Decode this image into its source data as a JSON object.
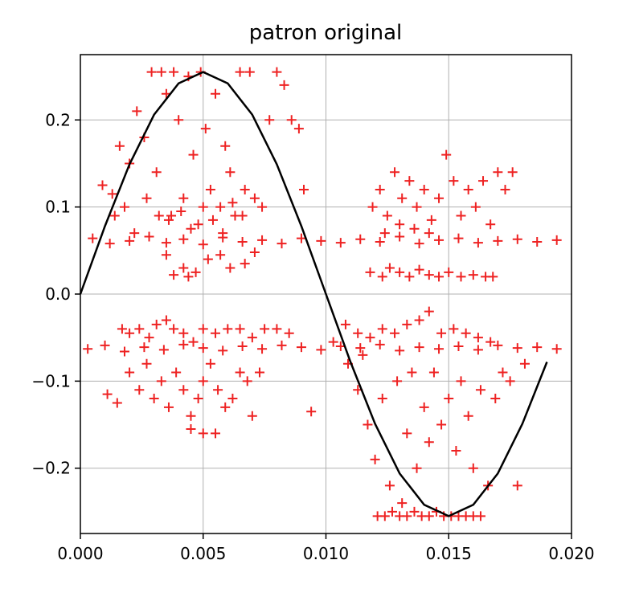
{
  "chart_data": {
    "type": "scatter",
    "title": "patron original",
    "xlabel": "",
    "ylabel": "",
    "xlim": [
      0.0,
      0.02
    ],
    "ylim": [
      -0.275,
      0.275
    ],
    "grid": true,
    "x_ticks": [
      "0.000",
      "0.005",
      "0.010",
      "0.015",
      "0.020"
    ],
    "x_tick_values": [
      0.0,
      0.005,
      0.01,
      0.015,
      0.02
    ],
    "y_ticks": [
      "0.2",
      "0.1",
      "0.0",
      "−0.1",
      "−0.2"
    ],
    "y_tick_values": [
      0.2,
      0.1,
      0.0,
      -0.1,
      -0.2
    ],
    "series": [
      {
        "kind": "line",
        "color": "#000000",
        "x": [
          0.0,
          0.001,
          0.002,
          0.003,
          0.004,
          0.005,
          0.006,
          0.007,
          0.008,
          0.009,
          0.01,
          0.011,
          0.012,
          0.013,
          0.014,
          0.015,
          0.016,
          0.017,
          0.018,
          0.019
        ],
        "y": [
          0.0,
          0.078,
          0.149,
          0.206,
          0.242,
          0.255,
          0.242,
          0.206,
          0.149,
          0.078,
          0.0,
          -0.078,
          -0.149,
          -0.206,
          -0.242,
          -0.255,
          -0.242,
          -0.206,
          -0.149,
          -0.078
        ]
      },
      {
        "kind": "scatter",
        "marker": "+",
        "color": "#ee2222",
        "points": [
          [
            0.0005,
            0.064
          ],
          [
            0.0012,
            0.058
          ],
          [
            0.002,
            0.061
          ],
          [
            0.0028,
            0.066
          ],
          [
            0.0035,
            0.059
          ],
          [
            0.0042,
            0.063
          ],
          [
            0.005,
            0.057
          ],
          [
            0.0058,
            0.065
          ],
          [
            0.0066,
            0.06
          ],
          [
            0.0074,
            0.062
          ],
          [
            0.0082,
            0.058
          ],
          [
            0.009,
            0.064
          ],
          [
            0.0098,
            0.061
          ],
          [
            0.0106,
            0.059
          ],
          [
            0.0114,
            0.063
          ],
          [
            0.0122,
            0.06
          ],
          [
            0.013,
            0.066
          ],
          [
            0.0138,
            0.058
          ],
          [
            0.0146,
            0.062
          ],
          [
            0.0154,
            0.064
          ],
          [
            0.0162,
            0.059
          ],
          [
            0.017,
            0.061
          ],
          [
            0.0178,
            0.063
          ],
          [
            0.0186,
            0.06
          ],
          [
            0.0194,
            0.062
          ],
          [
            0.0003,
            -0.063
          ],
          [
            0.001,
            -0.059
          ],
          [
            0.0018,
            -0.066
          ],
          [
            0.0026,
            -0.061
          ],
          [
            0.0034,
            -0.064
          ],
          [
            0.0042,
            -0.058
          ],
          [
            0.005,
            -0.062
          ],
          [
            0.0058,
            -0.065
          ],
          [
            0.0066,
            -0.06
          ],
          [
            0.0074,
            -0.063
          ],
          [
            0.0082,
            -0.059
          ],
          [
            0.009,
            -0.061
          ],
          [
            0.0098,
            -0.064
          ],
          [
            0.0106,
            -0.06
          ],
          [
            0.0114,
            -0.062
          ],
          [
            0.0122,
            -0.058
          ],
          [
            0.013,
            -0.065
          ],
          [
            0.0138,
            -0.061
          ],
          [
            0.0146,
            -0.063
          ],
          [
            0.0154,
            -0.06
          ],
          [
            0.0162,
            -0.064
          ],
          [
            0.017,
            -0.059
          ],
          [
            0.0178,
            -0.062
          ],
          [
            0.0186,
            -0.061
          ],
          [
            0.0194,
            -0.063
          ],
          [
            0.0009,
            0.125
          ],
          [
            0.0013,
            0.115
          ],
          [
            0.0016,
            0.17
          ],
          [
            0.002,
            0.15
          ],
          [
            0.0023,
            0.21
          ],
          [
            0.0026,
            0.18
          ],
          [
            0.0029,
            0.255
          ],
          [
            0.0031,
            0.14
          ],
          [
            0.0033,
            0.255
          ],
          [
            0.0035,
            0.23
          ],
          [
            0.0037,
            0.09
          ],
          [
            0.0038,
            0.255
          ],
          [
            0.004,
            0.2
          ],
          [
            0.0042,
            0.11
          ],
          [
            0.0044,
            0.25
          ],
          [
            0.0046,
            0.16
          ],
          [
            0.0048,
            0.08
          ],
          [
            0.0049,
            0.255
          ],
          [
            0.0051,
            0.19
          ],
          [
            0.0053,
            0.12
          ],
          [
            0.0055,
            0.23
          ],
          [
            0.0057,
            0.1
          ],
          [
            0.0059,
            0.17
          ],
          [
            0.0061,
            0.14
          ],
          [
            0.0063,
            0.09
          ],
          [
            0.0065,
            0.255
          ],
          [
            0.0067,
            0.12
          ],
          [
            0.0069,
            0.255
          ],
          [
            0.0071,
            0.11
          ],
          [
            0.0074,
            0.1
          ],
          [
            0.0077,
            0.2
          ],
          [
            0.008,
            0.255
          ],
          [
            0.0083,
            0.24
          ],
          [
            0.0086,
            0.2
          ],
          [
            0.0089,
            0.19
          ],
          [
            0.0091,
            0.12
          ],
          [
            0.0014,
            0.09
          ],
          [
            0.0018,
            0.1
          ],
          [
            0.0022,
            0.07
          ],
          [
            0.0027,
            0.11
          ],
          [
            0.0032,
            0.09
          ],
          [
            0.0036,
            0.085
          ],
          [
            0.0041,
            0.095
          ],
          [
            0.0045,
            0.075
          ],
          [
            0.005,
            0.1
          ],
          [
            0.0054,
            0.085
          ],
          [
            0.0058,
            0.07
          ],
          [
            0.0062,
            0.105
          ],
          [
            0.0066,
            0.09
          ],
          [
            0.0035,
            0.045
          ],
          [
            0.0042,
            0.03
          ],
          [
            0.0047,
            0.025
          ],
          [
            0.0052,
            0.04
          ],
          [
            0.0057,
            0.045
          ],
          [
            0.0061,
            0.03
          ],
          [
            0.0067,
            0.035
          ],
          [
            0.0071,
            0.048
          ],
          [
            0.0038,
            0.022
          ],
          [
            0.0044,
            0.02
          ],
          [
            0.0017,
            -0.04
          ],
          [
            0.002,
            -0.045
          ],
          [
            0.0024,
            -0.04
          ],
          [
            0.0028,
            -0.05
          ],
          [
            0.0031,
            -0.035
          ],
          [
            0.0035,
            -0.03
          ],
          [
            0.0038,
            -0.04
          ],
          [
            0.0042,
            -0.045
          ],
          [
            0.0046,
            -0.055
          ],
          [
            0.005,
            -0.04
          ],
          [
            0.0055,
            -0.045
          ],
          [
            0.006,
            -0.04
          ],
          [
            0.0065,
            -0.04
          ],
          [
            0.007,
            -0.05
          ],
          [
            0.0075,
            -0.04
          ],
          [
            0.008,
            -0.04
          ],
          [
            0.0085,
            -0.045
          ],
          [
            0.002,
            -0.09
          ],
          [
            0.0024,
            -0.11
          ],
          [
            0.0027,
            -0.08
          ],
          [
            0.003,
            -0.12
          ],
          [
            0.0033,
            -0.1
          ],
          [
            0.0036,
            -0.13
          ],
          [
            0.0039,
            -0.09
          ],
          [
            0.0042,
            -0.11
          ],
          [
            0.0045,
            -0.14
          ],
          [
            0.0048,
            -0.12
          ],
          [
            0.005,
            -0.1
          ],
          [
            0.0053,
            -0.08
          ],
          [
            0.0056,
            -0.11
          ],
          [
            0.0059,
            -0.13
          ],
          [
            0.0062,
            -0.12
          ],
          [
            0.0065,
            -0.09
          ],
          [
            0.0068,
            -0.1
          ],
          [
            0.007,
            -0.14
          ],
          [
            0.0073,
            -0.09
          ],
          [
            0.0045,
            -0.155
          ],
          [
            0.005,
            -0.16
          ],
          [
            0.0055,
            -0.16
          ],
          [
            0.0011,
            -0.115
          ],
          [
            0.0015,
            -0.125
          ],
          [
            0.0094,
            -0.135
          ],
          [
            0.0119,
            0.1
          ],
          [
            0.0122,
            0.12
          ],
          [
            0.0125,
            0.09
          ],
          [
            0.0128,
            0.14
          ],
          [
            0.0131,
            0.11
          ],
          [
            0.0134,
            0.13
          ],
          [
            0.0137,
            0.1
          ],
          [
            0.014,
            0.12
          ],
          [
            0.0143,
            0.085
          ],
          [
            0.0146,
            0.11
          ],
          [
            0.0149,
            0.16
          ],
          [
            0.0152,
            0.13
          ],
          [
            0.0155,
            0.09
          ],
          [
            0.0158,
            0.12
          ],
          [
            0.0161,
            0.1
          ],
          [
            0.0164,
            0.13
          ],
          [
            0.0167,
            0.08
          ],
          [
            0.017,
            0.14
          ],
          [
            0.0173,
            0.12
          ],
          [
            0.0176,
            0.14
          ],
          [
            0.0124,
            0.07
          ],
          [
            0.013,
            0.08
          ],
          [
            0.0136,
            0.075
          ],
          [
            0.0142,
            0.07
          ],
          [
            0.0118,
            0.025
          ],
          [
            0.0123,
            0.02
          ],
          [
            0.0126,
            0.03
          ],
          [
            0.013,
            0.025
          ],
          [
            0.0134,
            0.02
          ],
          [
            0.0138,
            0.028
          ],
          [
            0.0142,
            0.022
          ],
          [
            0.0146,
            0.02
          ],
          [
            0.015,
            0.025
          ],
          [
            0.0155,
            0.02
          ],
          [
            0.016,
            0.022
          ],
          [
            0.0165,
            0.02
          ],
          [
            0.0168,
            0.02
          ],
          [
            0.0103,
            -0.055
          ],
          [
            0.0108,
            -0.035
          ],
          [
            0.0113,
            -0.045
          ],
          [
            0.0118,
            -0.05
          ],
          [
            0.0123,
            -0.04
          ],
          [
            0.0128,
            -0.045
          ],
          [
            0.0133,
            -0.035
          ],
          [
            0.0138,
            -0.03
          ],
          [
            0.0142,
            -0.02
          ],
          [
            0.0147,
            -0.045
          ],
          [
            0.0152,
            -0.04
          ],
          [
            0.0157,
            -0.045
          ],
          [
            0.0162,
            -0.05
          ],
          [
            0.0167,
            -0.055
          ],
          [
            0.0113,
            -0.11
          ],
          [
            0.0117,
            -0.15
          ],
          [
            0.012,
            -0.19
          ],
          [
            0.0123,
            -0.12
          ],
          [
            0.0126,
            -0.22
          ],
          [
            0.0129,
            -0.1
          ],
          [
            0.0131,
            -0.24
          ],
          [
            0.0133,
            -0.16
          ],
          [
            0.0135,
            -0.09
          ],
          [
            0.0137,
            -0.2
          ],
          [
            0.014,
            -0.13
          ],
          [
            0.0142,
            -0.17
          ],
          [
            0.0144,
            -0.09
          ],
          [
            0.0147,
            -0.15
          ],
          [
            0.015,
            -0.12
          ],
          [
            0.0153,
            -0.18
          ],
          [
            0.0155,
            -0.1
          ],
          [
            0.0158,
            -0.14
          ],
          [
            0.016,
            -0.2
          ],
          [
            0.0163,
            -0.11
          ],
          [
            0.0166,
            -0.22
          ],
          [
            0.0169,
            -0.12
          ],
          [
            0.0172,
            -0.09
          ],
          [
            0.0175,
            -0.1
          ],
          [
            0.0178,
            -0.22
          ],
          [
            0.0181,
            -0.08
          ],
          [
            0.0109,
            -0.08
          ],
          [
            0.0115,
            -0.07
          ],
          [
            0.0121,
            -0.255
          ],
          [
            0.0124,
            -0.255
          ],
          [
            0.0127,
            -0.25
          ],
          [
            0.013,
            -0.255
          ],
          [
            0.0133,
            -0.255
          ],
          [
            0.0136,
            -0.25
          ],
          [
            0.0139,
            -0.255
          ],
          [
            0.0142,
            -0.255
          ],
          [
            0.0145,
            -0.25
          ],
          [
            0.0148,
            -0.255
          ],
          [
            0.0151,
            -0.255
          ],
          [
            0.0154,
            -0.255
          ],
          [
            0.0157,
            -0.255
          ],
          [
            0.016,
            -0.255
          ],
          [
            0.0163,
            -0.255
          ]
        ]
      }
    ]
  }
}
